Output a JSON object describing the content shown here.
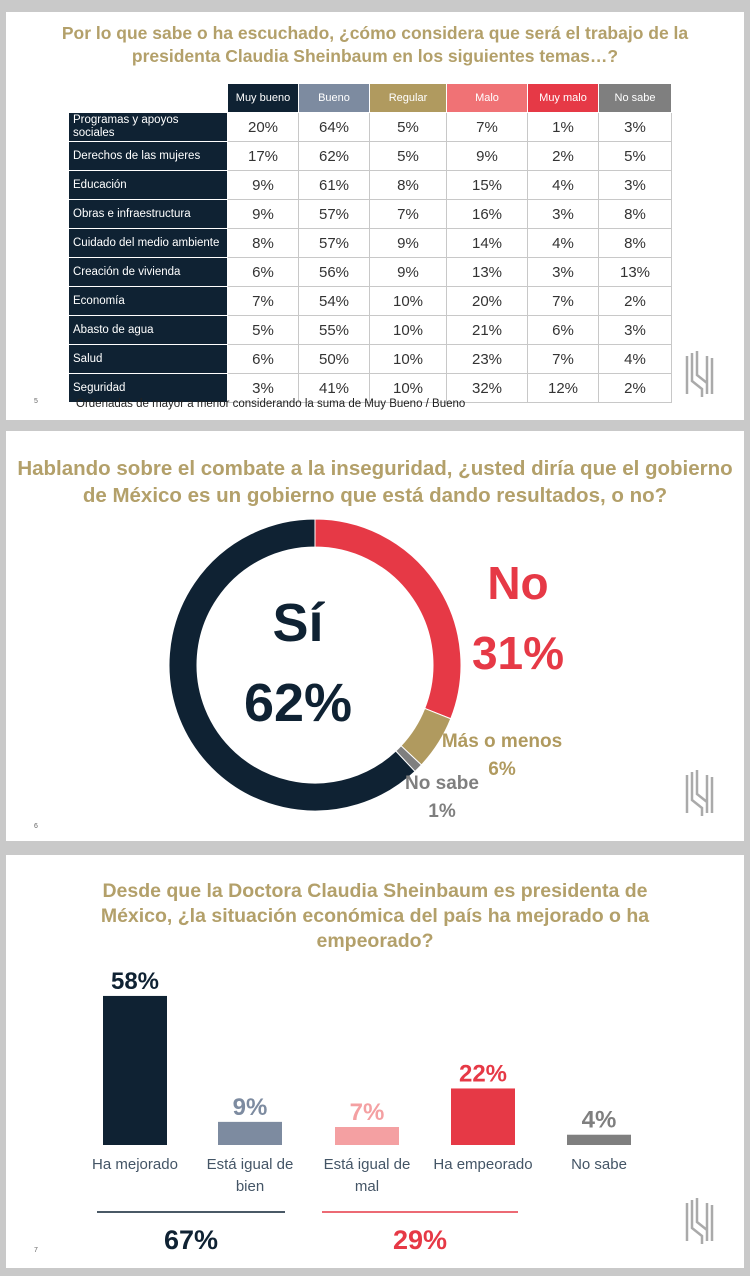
{
  "slide1": {
    "title": "Por lo que sabe o ha escuchado, ¿cómo considera que será el trabajo de la presidenta Claudia Sheinbaum en los siguientes temas…?",
    "page": "5",
    "note": "Ordenadas de mayor a menor considerando la suma de Muy Bueno / Bueno"
  },
  "slide2": {
    "title": "Hablando sobre el combate a la inseguridad, ¿usted diría que el gobierno de México es un gobierno que está dando resultados, o no?",
    "page": "6"
  },
  "slide3": {
    "title": "Desde que la Doctora Claudia Sheinbaum es presidenta de México, ¿la situación económica del país ha mejorado o ha empeorado?",
    "page": "7",
    "groups": [
      {
        "total": "67%",
        "color": "#0f2233"
      },
      {
        "total": "29%",
        "color": "#e63946"
      }
    ]
  },
  "chart_data": [
    {
      "type": "table",
      "columns": [
        "Muy bueno",
        "Bueno",
        "Regular",
        "Malo",
        "Muy malo",
        "No sabe"
      ],
      "column_colors": [
        "#0f2233",
        "#7d8ba0",
        "#b09a5f",
        "#f07275",
        "#e63946",
        "#7f7f7f"
      ],
      "rows": [
        {
          "label": "Programas y apoyos sociales",
          "values": [
            "20%",
            "64%",
            "5%",
            "7%",
            "1%",
            "3%"
          ]
        },
        {
          "label": "Derechos de las mujeres",
          "values": [
            "17%",
            "62%",
            "5%",
            "9%",
            "2%",
            "5%"
          ]
        },
        {
          "label": "Educación",
          "values": [
            "9%",
            "61%",
            "8%",
            "15%",
            "4%",
            "3%"
          ]
        },
        {
          "label": "Obras e infraestructura",
          "values": [
            "9%",
            "57%",
            "7%",
            "16%",
            "3%",
            "8%"
          ]
        },
        {
          "label": "Cuidado del medio ambiente",
          "values": [
            "8%",
            "57%",
            "9%",
            "14%",
            "4%",
            "8%"
          ]
        },
        {
          "label": "Creación de vivienda",
          "values": [
            "6%",
            "56%",
            "9%",
            "13%",
            "3%",
            "13%"
          ]
        },
        {
          "label": "Economía",
          "values": [
            "7%",
            "54%",
            "10%",
            "20%",
            "7%",
            "2%"
          ]
        },
        {
          "label": "Abasto de agua",
          "values": [
            "5%",
            "55%",
            "10%",
            "21%",
            "6%",
            "3%"
          ]
        },
        {
          "label": "Salud",
          "values": [
            "6%",
            "50%",
            "10%",
            "23%",
            "7%",
            "4%"
          ]
        },
        {
          "label": "Seguridad",
          "values": [
            "3%",
            "41%",
            "10%",
            "32%",
            "12%",
            "2%"
          ]
        }
      ]
    },
    {
      "type": "pie",
      "donut": true,
      "slices": [
        {
          "label": "No",
          "value": 31,
          "text": "31%",
          "color": "#e63946"
        },
        {
          "label": "Más o menos",
          "value": 6,
          "text": "6%",
          "color": "#b09a5f"
        },
        {
          "label": "No sabe",
          "value": 1,
          "text": "1%",
          "color": "#7f7f7f"
        },
        {
          "label": "Sí",
          "value": 62,
          "text": "62%",
          "color": "#0f2233"
        }
      ]
    },
    {
      "type": "bar",
      "categories": [
        "Ha mejorado",
        "Está igual de bien",
        "Está igual de mal",
        "Ha empeorado",
        "No sabe"
      ],
      "values": [
        58,
        9,
        7,
        22,
        4
      ],
      "labels": [
        "58%",
        "9%",
        "7%",
        "22%",
        "4%"
      ],
      "colors": [
        "#0f2233",
        "#7d8ba0",
        "#f4a0a2",
        "#e63946",
        "#7f7f7f"
      ],
      "ylim": [
        0,
        60
      ]
    }
  ]
}
